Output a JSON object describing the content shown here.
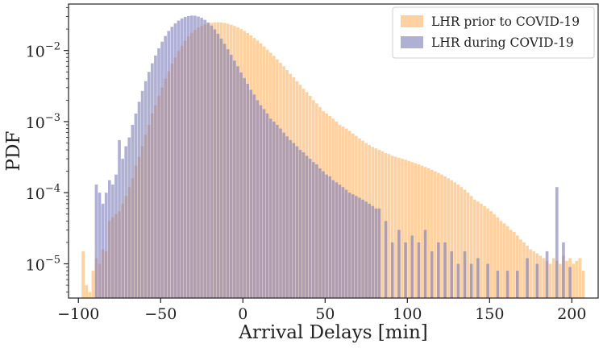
{
  "chart_data": {
    "type": "bar",
    "title": "",
    "xlabel": "Arrival Delays [min]",
    "ylabel": "PDF",
    "xlim": [
      -106,
      216
    ],
    "ylim": [
      3.3e-06,
      0.045
    ],
    "yscale": "log",
    "xticks": [
      -100,
      -50,
      0,
      50,
      100,
      150,
      200
    ],
    "yticks": [
      {
        "value": 0.01,
        "mantissa": "10",
        "exp": "−2"
      },
      {
        "value": 0.001,
        "mantissa": "10",
        "exp": "−3"
      },
      {
        "value": 0.0001,
        "mantissa": "10",
        "exp": "−4"
      },
      {
        "value": 1e-05,
        "mantissa": "10",
        "exp": "−5"
      }
    ],
    "grid": false,
    "legend_position": "top-right",
    "bin_width": 1,
    "series": [
      {
        "name": "LHR prior to COVID-19",
        "color": "#fdbe79",
        "opacity": 0.7,
        "bins": [
          [
            -97,
            1.5e-05
          ],
          [
            -95,
            5e-06
          ],
          [
            -93,
            4e-06
          ],
          [
            -91,
            8e-06
          ],
          [
            -89,
            1.2e-05
          ],
          [
            -87,
            1e-05
          ],
          [
            -85,
            1.6e-05
          ],
          [
            -83,
            1.5e-05
          ],
          [
            -81,
            4e-05
          ],
          [
            -79,
            4.5e-05
          ],
          [
            -77,
            5e-05
          ],
          [
            -75,
            5.5e-05
          ],
          [
            -73,
            7e-05
          ],
          [
            -71,
            9e-05
          ],
          [
            -69,
            0.00012
          ],
          [
            -67,
            0.00016
          ],
          [
            -65,
            0.00024
          ],
          [
            -63,
            0.00032
          ],
          [
            -61,
            0.00045
          ],
          [
            -59,
            0.00065
          ],
          [
            -57,
            0.0009
          ],
          [
            -55,
            0.0013
          ],
          [
            -53,
            0.0017
          ],
          [
            -51,
            0.0023
          ],
          [
            -49,
            0.003
          ],
          [
            -47,
            0.004
          ],
          [
            -45,
            0.0051
          ],
          [
            -43,
            0.0065
          ],
          [
            -41,
            0.008
          ],
          [
            -39,
            0.0098
          ],
          [
            -37,
            0.0117
          ],
          [
            -35,
            0.0137
          ],
          [
            -33,
            0.0157
          ],
          [
            -31,
            0.0177
          ],
          [
            -29,
            0.0195
          ],
          [
            -27,
            0.021
          ],
          [
            -25,
            0.0222
          ],
          [
            -23,
            0.0232
          ],
          [
            -21,
            0.024
          ],
          [
            -19,
            0.0245
          ],
          [
            -17,
            0.0248
          ],
          [
            -15,
            0.025
          ],
          [
            -13,
            0.0248
          ],
          [
            -11,
            0.0244
          ],
          [
            -9,
            0.0238
          ],
          [
            -7,
            0.023
          ],
          [
            -5,
            0.0221
          ],
          [
            -3,
            0.0211
          ],
          [
            -1,
            0.02
          ],
          [
            1,
            0.0188
          ],
          [
            3,
            0.0176
          ],
          [
            5,
            0.0163
          ],
          [
            7,
            0.015
          ],
          [
            9,
            0.0138
          ],
          [
            11,
            0.0126
          ],
          [
            13,
            0.0114
          ],
          [
            15,
            0.0103
          ],
          [
            17,
            0.0093
          ],
          [
            19,
            0.0084
          ],
          [
            21,
            0.0075
          ],
          [
            23,
            0.0067
          ],
          [
            25,
            0.006
          ],
          [
            27,
            0.0053
          ],
          [
            29,
            0.0047
          ],
          [
            31,
            0.0042
          ],
          [
            33,
            0.0037
          ],
          [
            35,
            0.0033
          ],
          [
            37,
            0.0029
          ],
          [
            39,
            0.0026
          ],
          [
            41,
            0.0023
          ],
          [
            43,
            0.002
          ],
          [
            45,
            0.0018
          ],
          [
            47,
            0.0016
          ],
          [
            49,
            0.0014
          ],
          [
            51,
            0.0013
          ],
          [
            53,
            0.0012
          ],
          [
            55,
            0.0011
          ],
          [
            57,
            0.001
          ],
          [
            59,
            0.0009
          ],
          [
            61,
            0.00085
          ],
          [
            63,
            0.0008
          ],
          [
            65,
            0.00074
          ],
          [
            67,
            0.00068
          ],
          [
            69,
            0.00063
          ],
          [
            71,
            0.00058
          ],
          [
            73,
            0.00054
          ],
          [
            75,
            0.0005
          ],
          [
            77,
            0.00047
          ],
          [
            79,
            0.00044
          ],
          [
            81,
            0.00042
          ],
          [
            83,
            0.0004
          ],
          [
            85,
            0.00038
          ],
          [
            87,
            0.00036
          ],
          [
            89,
            0.00035
          ],
          [
            91,
            0.00033
          ],
          [
            93,
            0.00032
          ],
          [
            95,
            0.00031
          ],
          [
            97,
            0.0003
          ],
          [
            99,
            0.00029
          ],
          [
            101,
            0.00028
          ],
          [
            103,
            0.00027
          ],
          [
            105,
            0.00026
          ],
          [
            107,
            0.00025
          ],
          [
            109,
            0.00024
          ],
          [
            111,
            0.00023
          ],
          [
            113,
            0.00022
          ],
          [
            115,
            0.00021
          ],
          [
            117,
            0.0002
          ],
          [
            119,
            0.00019
          ],
          [
            121,
            0.00018
          ],
          [
            123,
            0.00017
          ],
          [
            125,
            0.00016
          ],
          [
            127,
            0.00015
          ],
          [
            129,
            0.00014
          ],
          [
            131,
            0.00013
          ],
          [
            133,
            0.00012
          ],
          [
            135,
            0.00011
          ],
          [
            137,
            0.0001
          ],
          [
            139,
            9e-05
          ],
          [
            141,
            8e-05
          ],
          [
            143,
            7.5e-05
          ],
          [
            145,
            7e-05
          ],
          [
            147,
            6.5e-05
          ],
          [
            149,
            6e-05
          ],
          [
            151,
            5.5e-05
          ],
          [
            153,
            5e-05
          ],
          [
            155,
            4.5e-05
          ],
          [
            157,
            4e-05
          ],
          [
            159,
            3.7e-05
          ],
          [
            161,
            3.4e-05
          ],
          [
            163,
            3e-05
          ],
          [
            165,
            2.8e-05
          ],
          [
            167,
            2.5e-05
          ],
          [
            169,
            2.2e-05
          ],
          [
            171,
            2e-05
          ],
          [
            173,
            1.8e-05
          ],
          [
            175,
            1.6e-05
          ],
          [
            177,
            1.5e-05
          ],
          [
            179,
            1.4e-05
          ],
          [
            181,
            1.3e-05
          ],
          [
            183,
            1.2e-05
          ],
          [
            185,
            1.1e-05
          ],
          [
            187,
            1e-05
          ],
          [
            189,
            1.2e-05
          ],
          [
            191,
            1.1e-05
          ],
          [
            193,
            1e-05
          ],
          [
            195,
            1.3e-05
          ],
          [
            197,
            1.1e-05
          ],
          [
            199,
            1.2e-05
          ],
          [
            201,
            1e-05
          ],
          [
            203,
            1.1e-05
          ],
          [
            205,
            1.2e-05
          ],
          [
            207,
            8e-06
          ]
        ]
      },
      {
        "name": "LHR during COVID-19",
        "color": "#7b7cb9",
        "opacity": 0.6,
        "bins": [
          [
            -89,
            0.00013
          ],
          [
            -87,
            0.0001
          ],
          [
            -85,
            7e-05
          ],
          [
            -83,
            0.0001
          ],
          [
            -81,
            0.00015
          ],
          [
            -79,
            0.00013
          ],
          [
            -77,
            0.00018
          ],
          [
            -75,
            0.00055
          ],
          [
            -73,
            0.0003
          ],
          [
            -71,
            0.00045
          ],
          [
            -69,
            0.0006
          ],
          [
            -67,
            0.0009
          ],
          [
            -65,
            0.0013
          ],
          [
            -63,
            0.0019
          ],
          [
            -61,
            0.0027
          ],
          [
            -59,
            0.0037
          ],
          [
            -57,
            0.005
          ],
          [
            -55,
            0.0066
          ],
          [
            -53,
            0.0085
          ],
          [
            -51,
            0.0107
          ],
          [
            -49,
            0.0133
          ],
          [
            -47,
            0.016
          ],
          [
            -45,
            0.0188
          ],
          [
            -43,
            0.0215
          ],
          [
            -41,
            0.024
          ],
          [
            -39,
            0.0263
          ],
          [
            -37,
            0.0282
          ],
          [
            -35,
            0.0296
          ],
          [
            -33,
            0.0305
          ],
          [
            -31,
            0.031
          ],
          [
            -29,
            0.0308
          ],
          [
            -27,
            0.03
          ],
          [
            -25,
            0.0288
          ],
          [
            -23,
            0.027
          ],
          [
            -21,
            0.0248
          ],
          [
            -19,
            0.0224
          ],
          [
            -17,
            0.0198
          ],
          [
            -15,
            0.0172
          ],
          [
            -13,
            0.0147
          ],
          [
            -11,
            0.0124
          ],
          [
            -9,
            0.0104
          ],
          [
            -7,
            0.0087
          ],
          [
            -5,
            0.0072
          ],
          [
            -3,
            0.006
          ],
          [
            -1,
            0.0049
          ],
          [
            1,
            0.0041
          ],
          [
            3,
            0.0034
          ],
          [
            5,
            0.0028
          ],
          [
            7,
            0.0024
          ],
          [
            9,
            0.002
          ],
          [
            11,
            0.0017
          ],
          [
            13,
            0.0015
          ],
          [
            15,
            0.0013
          ],
          [
            17,
            0.0011
          ],
          [
            19,
            0.001
          ],
          [
            21,
            0.0009
          ],
          [
            23,
            0.0008
          ],
          [
            25,
            0.0007
          ],
          [
            27,
            0.00062
          ],
          [
            29,
            0.00055
          ],
          [
            31,
            0.0005
          ],
          [
            33,
            0.00045
          ],
          [
            35,
            0.0004
          ],
          [
            37,
            0.00037
          ],
          [
            39,
            0.00033
          ],
          [
            41,
            0.0003
          ],
          [
            43,
            0.00027
          ],
          [
            45,
            0.00025
          ],
          [
            47,
            0.00022
          ],
          [
            49,
            0.0002
          ],
          [
            51,
            0.00018
          ],
          [
            53,
            0.00017
          ],
          [
            55,
            0.00015
          ],
          [
            57,
            0.00014
          ],
          [
            59,
            0.00013
          ],
          [
            61,
            0.00012
          ],
          [
            63,
            0.00011
          ],
          [
            65,
            0.0001
          ],
          [
            67,
            9.5e-05
          ],
          [
            69,
            9e-05
          ],
          [
            71,
            8.5e-05
          ],
          [
            73,
            8e-05
          ],
          [
            75,
            7.5e-05
          ],
          [
            77,
            7e-05
          ],
          [
            79,
            6.5e-05
          ],
          [
            81,
            6e-05
          ],
          [
            83,
            6e-05
          ],
          [
            87,
            4e-05
          ],
          [
            91,
            2e-05
          ],
          [
            95,
            3e-05
          ],
          [
            99,
            2e-05
          ],
          [
            103,
            2.5e-05
          ],
          [
            107,
            2e-05
          ],
          [
            111,
            3e-05
          ],
          [
            115,
            1.5e-05
          ],
          [
            119,
            2e-05
          ],
          [
            123,
            2e-05
          ],
          [
            127,
            1.5e-05
          ],
          [
            131,
            1e-05
          ],
          [
            135,
            1.5e-05
          ],
          [
            139,
            1e-05
          ],
          [
            143,
            1.2e-05
          ],
          [
            149,
            1e-05
          ],
          [
            155,
            8e-06
          ],
          [
            161,
            8e-06
          ],
          [
            167,
            8e-06
          ],
          [
            173,
            1.2e-05
          ],
          [
            179,
            1e-05
          ],
          [
            185,
            1.5e-05
          ],
          [
            191,
            0.00012
          ],
          [
            195,
            2e-05
          ],
          [
            199,
            9e-06
          ]
        ]
      }
    ]
  }
}
